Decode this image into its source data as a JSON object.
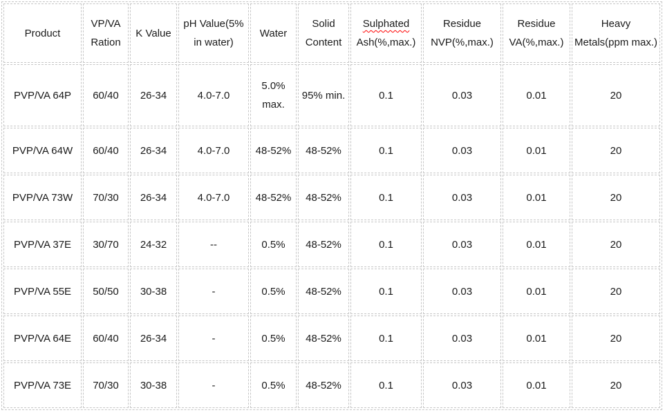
{
  "colors": {
    "background": "#ffffff",
    "table_border": "#c6c6c6",
    "text": "#1a1a1a",
    "spellcheck_underline": "#ff0000"
  },
  "table": {
    "columns": [
      {
        "id": "product",
        "lines": [
          "Product"
        ]
      },
      {
        "id": "vp-va-ration",
        "lines": [
          "VP/VA",
          "Ration"
        ]
      },
      {
        "id": "k-value",
        "lines": [
          "K Value"
        ]
      },
      {
        "id": "ph-value",
        "lines": [
          "pH Value(5%",
          "in water)"
        ]
      },
      {
        "id": "water",
        "lines": [
          "Water"
        ]
      },
      {
        "id": "solid-content",
        "lines": [
          "Solid",
          "Content"
        ]
      },
      {
        "id": "sulphated-ash",
        "lines": [
          "Sulphated",
          "Ash(%,max.)"
        ],
        "misspelled_line": 0
      },
      {
        "id": "residue-nvp",
        "lines": [
          "Residue",
          "NVP(%,max.)"
        ]
      },
      {
        "id": "residue-va",
        "lines": [
          "Residue",
          "VA(%,max.)"
        ]
      },
      {
        "id": "heavy-metals",
        "lines": [
          "Heavy",
          "Metals(ppm max.)"
        ]
      }
    ],
    "rows": [
      {
        "cells": [
          "PVP/VA 64P",
          "60/40",
          "26-34",
          "4.0-7.0",
          "5.0%\nmax.",
          "95% min.",
          "0.1",
          "0.03",
          "0.01",
          "20"
        ]
      },
      {
        "cells": [
          "PVP/VA 64W",
          "60/40",
          "26-34",
          "4.0-7.0",
          "48-52%",
          "48-52%",
          "0.1",
          "0.03",
          "0.01",
          "20"
        ]
      },
      {
        "cells": [
          "PVP/VA 73W",
          "70/30",
          "26-34",
          "4.0-7.0",
          "48-52%",
          "48-52%",
          "0.1",
          "0.03",
          "0.01",
          "20"
        ]
      },
      {
        "cells": [
          "PVP/VA 37E",
          "30/70",
          "24-32",
          "--",
          "0.5%",
          "48-52%",
          "0.1",
          "0.03",
          "0.01",
          "20"
        ]
      },
      {
        "cells": [
          "PVP/VA 55E",
          "50/50",
          "30-38",
          "-",
          "0.5%",
          "48-52%",
          "0.1",
          "0.03",
          "0.01",
          "20"
        ]
      },
      {
        "cells": [
          "PVP/VA 64E",
          "60/40",
          "26-34",
          "-",
          "0.5%",
          "48-52%",
          "0.1",
          "0.03",
          "0.01",
          "20"
        ]
      },
      {
        "cells": [
          "PVP/VA 73E",
          "70/30",
          "30-38",
          "-",
          "0.5%",
          "48-52%",
          "0.1",
          "0.03",
          "0.01",
          "20"
        ]
      }
    ]
  }
}
